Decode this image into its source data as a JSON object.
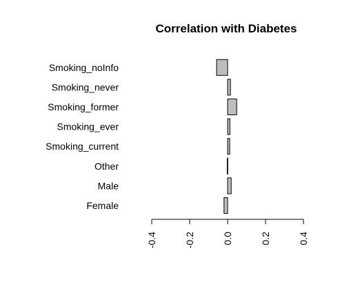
{
  "chart_data": {
    "type": "bar",
    "orientation": "horizontal",
    "title": "Correlation with Diabetes",
    "xlabel": "",
    "ylabel": "",
    "categories": [
      "Female",
      "Male",
      "Other",
      "Smoking_current",
      "Smoking_ever",
      "Smoking_former",
      "Smoking_never",
      "Smoking_noInfo"
    ],
    "values": [
      -0.019,
      0.019,
      -0.002,
      0.011,
      0.012,
      0.048,
      0.015,
      -0.058
    ],
    "xlim": [
      -0.4,
      0.4
    ],
    "xticks": [
      "-0.4",
      "-0.2",
      "0.0",
      "0.2",
      "0.4"
    ],
    "bar_color": "#bebebe",
    "grid": false
  }
}
